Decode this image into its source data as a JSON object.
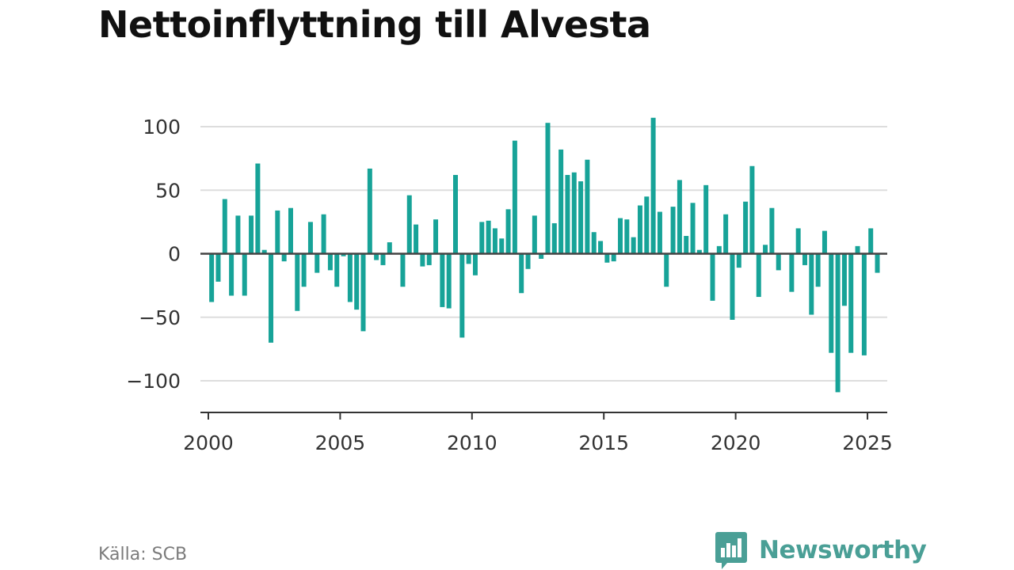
{
  "title": "Nettoinflyttning till Alvesta",
  "source": "Källa: SCB",
  "brand": {
    "name": "Newsworthy",
    "icon": "chat-bar-chart-icon",
    "color": "#4a9f96"
  },
  "colors": {
    "bar": "#17a398",
    "grid": "#dddddd",
    "zero_line": "#444444",
    "axis": "#333333"
  },
  "chart_data": {
    "type": "bar",
    "title": "Nettoinflyttning till Alvesta",
    "xlabel": "",
    "ylabel": "",
    "frequency": "quarterly",
    "xlim": [
      1999.7,
      2025.75
    ],
    "ylim": [
      -125,
      125
    ],
    "xticks": [
      2000,
      2005,
      2010,
      2015,
      2020,
      2025
    ],
    "yticks": [
      100,
      50,
      0,
      -50,
      -100
    ],
    "ytick_labels": [
      "100",
      "50",
      "0",
      "−50",
      "−100"
    ],
    "grid": true,
    "legend": "none",
    "x": [
      2000.0,
      2000.25,
      2000.5,
      2000.75,
      2001.0,
      2001.25,
      2001.5,
      2001.75,
      2002.0,
      2002.25,
      2002.5,
      2002.75,
      2003.0,
      2003.25,
      2003.5,
      2003.75,
      2004.0,
      2004.25,
      2004.5,
      2004.75,
      2005.0,
      2005.25,
      2005.5,
      2005.75,
      2006.0,
      2006.25,
      2006.5,
      2006.75,
      2007.0,
      2007.25,
      2007.5,
      2007.75,
      2008.0,
      2008.25,
      2008.5,
      2008.75,
      2009.0,
      2009.25,
      2009.5,
      2009.75,
      2010.0,
      2010.25,
      2010.5,
      2010.75,
      2011.0,
      2011.25,
      2011.5,
      2011.75,
      2012.0,
      2012.25,
      2012.5,
      2012.75,
      2013.0,
      2013.25,
      2013.5,
      2013.75,
      2014.0,
      2014.25,
      2014.5,
      2014.75,
      2015.0,
      2015.25,
      2015.5,
      2015.75,
      2016.0,
      2016.25,
      2016.5,
      2016.75,
      2017.0,
      2017.25,
      2017.5,
      2017.75,
      2018.0,
      2018.25,
      2018.5,
      2018.75,
      2019.0,
      2019.25,
      2019.5,
      2019.75,
      2020.0,
      2020.25,
      2020.5,
      2020.75,
      2021.0,
      2021.25,
      2021.5,
      2021.75,
      2022.0,
      2022.25,
      2022.5,
      2022.75,
      2023.0,
      2023.25,
      2023.5,
      2023.75,
      2024.0,
      2024.25,
      2024.5,
      2024.75,
      2025.0,
      2025.25
    ],
    "values": [
      -38,
      -22,
      43,
      -33,
      30,
      -33,
      30,
      71,
      3,
      -70,
      34,
      -6,
      36,
      -45,
      -26,
      25,
      -15,
      31,
      -13,
      -26,
      -2,
      -38,
      -44,
      -61,
      67,
      -5,
      -9,
      9,
      0,
      -26,
      46,
      23,
      -10,
      -9,
      27,
      -42,
      -43,
      62,
      -66,
      -8,
      -17,
      25,
      26,
      20,
      12,
      35,
      89,
      -31,
      -12,
      30,
      -4,
      103,
      24,
      82,
      62,
      64,
      57,
      74,
      17,
      10,
      -7,
      -6,
      28,
      27,
      13,
      38,
      45,
      107,
      33,
      -26,
      37,
      58,
      14,
      40,
      3,
      54,
      -37,
      6,
      31,
      -52,
      -11,
      41,
      69,
      -34,
      7,
      36,
      -13,
      0,
      -30,
      20,
      -9,
      -48,
      -26,
      18,
      -78,
      -109,
      -41,
      -78,
      6,
      -80,
      20,
      -15
    ]
  }
}
